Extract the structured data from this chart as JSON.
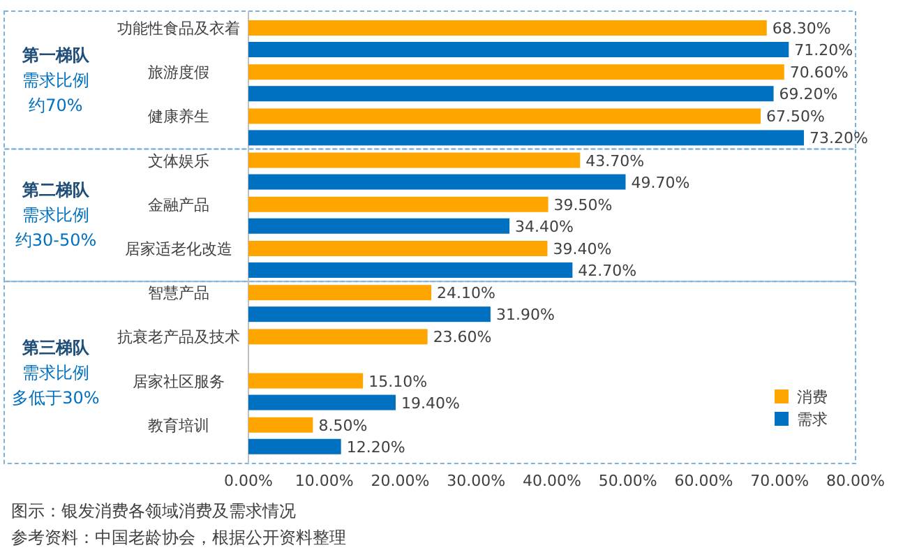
{
  "chart_data": {
    "type": "bar",
    "orientation": "horizontal",
    "categories": [
      "功能性食品及衣着",
      "旅游度假",
      "健康养生",
      "文体娱乐",
      "金融产品",
      "居家适老化改造",
      "智慧产品",
      "抗衰老产品及技术",
      "居家社区服务",
      "教育培训"
    ],
    "series": [
      {
        "name": "消费",
        "color": "#ffa500",
        "values": [
          68.3,
          70.6,
          67.5,
          43.7,
          39.5,
          39.4,
          24.1,
          23.6,
          15.1,
          8.5
        ],
        "value_labels": [
          "68.30%",
          "70.60%",
          "67.50%",
          "43.70%",
          "39.50%",
          "39.40%",
          "24.10%",
          "23.60%",
          "15.10%",
          "8.50%"
        ]
      },
      {
        "name": "需求",
        "color": "#0070c0",
        "values": [
          71.2,
          69.2,
          73.2,
          49.7,
          34.4,
          42.7,
          31.9,
          null,
          19.4,
          12.2
        ],
        "value_labels": [
          "71.20%",
          "69.20%",
          "73.20%",
          "49.70%",
          "34.40%",
          "42.70%",
          "31.90%",
          null,
          "19.40%",
          "12.20%"
        ]
      }
    ],
    "xlim": [
      0,
      80
    ],
    "xticks": [
      {
        "value": 0,
        "label": "0.00%"
      },
      {
        "value": 10,
        "label": "10.00%"
      },
      {
        "value": 20,
        "label": "20.00%"
      },
      {
        "value": 30,
        "label": "30.00%"
      },
      {
        "value": 40,
        "label": "40.00%"
      },
      {
        "value": 50,
        "label": "50.00%"
      },
      {
        "value": 60,
        "label": "60.00%"
      },
      {
        "value": 70,
        "label": "70.00%"
      },
      {
        "value": 80,
        "label": "80.00%"
      }
    ],
    "legend": "bottom right",
    "grid": false,
    "annotations": [
      "第一梯队",
      "需求比例",
      "约70%",
      "第二梯队",
      "需求比例",
      "约30-50%",
      "第三梯队",
      "需求比例",
      "多低于30%",
      "图示：银发消费各领域消费及需求情况",
      "参考资料：中国老龄协会，根据公开资料整理"
    ]
  }
}
